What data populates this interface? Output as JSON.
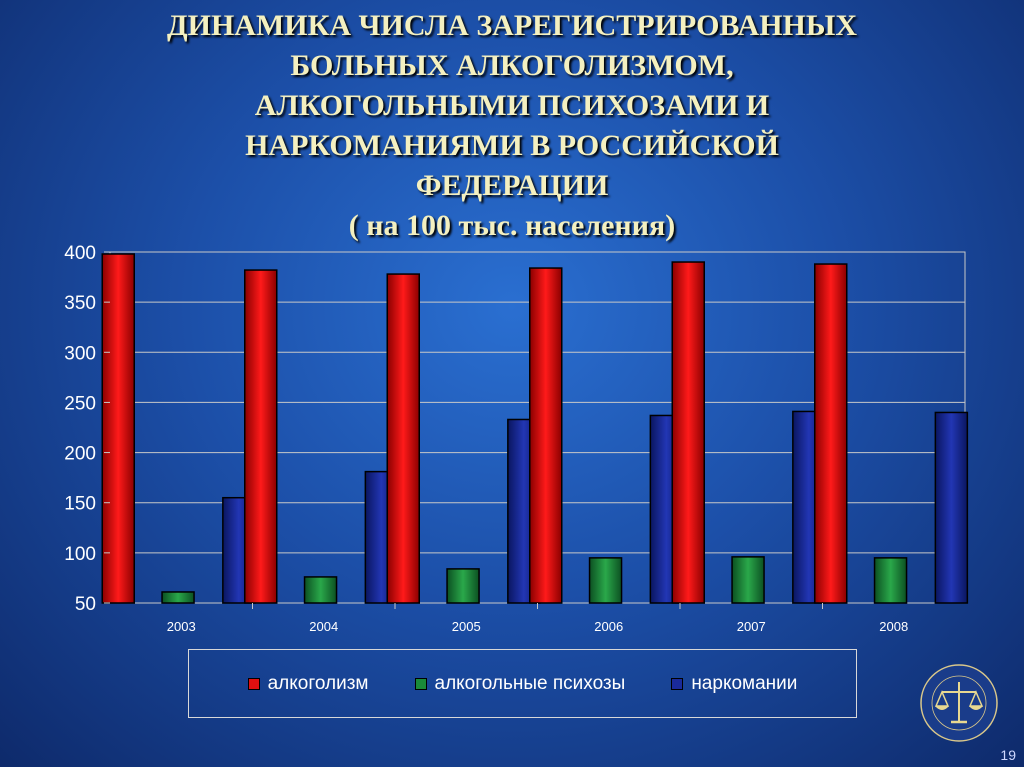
{
  "title_lines": [
    "ДИНАМИКА ЧИСЛА ЗАРЕГИСТРИРОВАННЫХ",
    "БОЛЬНЫХ АЛКОГОЛИЗМОМ,",
    "АЛКОГОЛЬНЫМИ ПСИХОЗАМИ И",
    "НАРКОМАНИЯМИ В РОССИЙСКОЙ",
    "ФЕДЕРАЦИИ",
    "( на 100 тыс. населения)"
  ],
  "page_number": "19",
  "chart_data": {
    "type": "bar",
    "title": "",
    "xlabel": "",
    "ylabel": "",
    "categories": [
      "2003",
      "2004",
      "2005",
      "2006",
      "2007",
      "2008"
    ],
    "ylim": [
      50,
      400
    ],
    "yticks": [
      "50",
      "100",
      "150",
      "200",
      "250",
      "300",
      "350",
      "400"
    ],
    "grid": true,
    "legend_position": "bottom",
    "series": [
      {
        "name": "алкоголизм",
        "color": "#e01010",
        "values": [
          398,
          382,
          378,
          384,
          390,
          388
        ]
      },
      {
        "name": "алкогольные психозы",
        "color": "#1a8a3a",
        "values": [
          61,
          76,
          84,
          95,
          96,
          95
        ]
      },
      {
        "name": "наркомании",
        "color": "#1a2a9a",
        "values": [
          155,
          181,
          233,
          237,
          241,
          240
        ]
      }
    ]
  }
}
